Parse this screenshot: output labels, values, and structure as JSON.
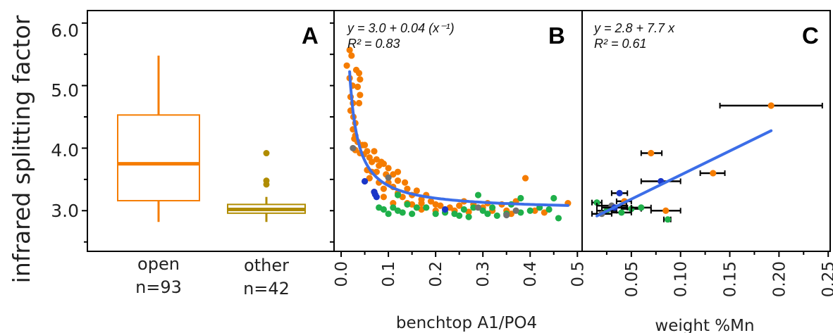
{
  "figure": {
    "y_axis_label": "infrared splitting factor",
    "y_ticks": [
      "3.0",
      "4.0",
      "5.0",
      "6.0"
    ],
    "colors": {
      "open": "#f57c00",
      "other": "#b08c00",
      "orange_points": "#f57c00",
      "green_points": "#1fb04a",
      "blue_points": "#1a36c8",
      "gray_points": "#707070",
      "fit_line": "#3c6ee8",
      "error_bar": "#000000"
    }
  },
  "chart_data": [
    {
      "panel": "A",
      "type": "box",
      "ylim": [
        2.35,
        6.2
      ],
      "categories": [
        "open",
        "other"
      ],
      "counts": [
        "n=93",
        "n=42"
      ],
      "boxes": [
        {
          "name": "open",
          "min": 2.82,
          "q1": 3.16,
          "median": 3.75,
          "q3": 4.53,
          "max": 5.48,
          "outliers": []
        },
        {
          "name": "other",
          "min": 2.82,
          "q1": 2.96,
          "median": 3.02,
          "q3": 3.1,
          "max": 3.22,
          "outliers": [
            3.92,
            3.48,
            3.42
          ]
        }
      ]
    },
    {
      "panel": "B",
      "type": "scatter",
      "xlabel": "benchtop A1/PO4",
      "x_ticks": [
        "0.0",
        "0.1",
        "0.2",
        "0.3",
        "0.4",
        "0.5"
      ],
      "xlim": [
        -0.015,
        0.51
      ],
      "ylim": [
        2.35,
        6.2
      ],
      "equation": "y = 3.0 + 0.04 (x⁻¹)",
      "r2": "R² = 0.83",
      "fit": {
        "intercept": 3.0,
        "slope": 0.04,
        "form": "reciprocal",
        "x_range": [
          0.018,
          0.48
        ]
      },
      "series": [
        {
          "color_key": "orange_points",
          "points": [
            [
              0.012,
              5.32
            ],
            [
              0.018,
              5.57
            ],
            [
              0.022,
              5.48
            ],
            [
              0.018,
              5.12
            ],
            [
              0.024,
              5.0
            ],
            [
              0.02,
              4.82
            ],
            [
              0.025,
              4.72
            ],
            [
              0.02,
              4.6
            ],
            [
              0.026,
              4.5
            ],
            [
              0.03,
              4.4
            ],
            [
              0.025,
              4.3
            ],
            [
              0.03,
              4.2
            ],
            [
              0.032,
              5.25
            ],
            [
              0.038,
              5.2
            ],
            [
              0.04,
              5.1
            ],
            [
              0.035,
              4.98
            ],
            [
              0.04,
              4.85
            ],
            [
              0.028,
              4.15
            ],
            [
              0.035,
              4.1
            ],
            [
              0.03,
              3.97
            ],
            [
              0.04,
              3.92
            ],
            [
              0.045,
              4.05
            ],
            [
              0.038,
              4.72
            ],
            [
              0.05,
              4.05
            ],
            [
              0.048,
              3.9
            ],
            [
              0.055,
              3.95
            ],
            [
              0.06,
              3.85
            ],
            [
              0.065,
              3.78
            ],
            [
              0.07,
              3.95
            ],
            [
              0.075,
              3.82
            ],
            [
              0.08,
              3.72
            ],
            [
              0.085,
              3.78
            ],
            [
              0.09,
              3.75
            ],
            [
              0.095,
              3.58
            ],
            [
              0.1,
              3.68
            ],
            [
              0.11,
              3.58
            ],
            [
              0.12,
              3.62
            ],
            [
              0.055,
              3.65
            ],
            [
              0.065,
              3.62
            ],
            [
              0.06,
              3.52
            ],
            [
              0.075,
              3.62
            ],
            [
              0.08,
              3.45
            ],
            [
              0.09,
              3.35
            ],
            [
              0.1,
              3.45
            ],
            [
              0.11,
              3.38
            ],
            [
              0.12,
              3.28
            ],
            [
              0.13,
              3.22
            ],
            [
              0.14,
              3.35
            ],
            [
              0.15,
              3.25
            ],
            [
              0.16,
              3.32
            ],
            [
              0.17,
              3.18
            ],
            [
              0.18,
              3.25
            ],
            [
              0.19,
              3.15
            ],
            [
              0.15,
              3.1
            ],
            [
              0.16,
              3.05
            ],
            [
              0.17,
              3.02
            ],
            [
              0.12,
              3.48
            ],
            [
              0.135,
              3.45
            ],
            [
              0.14,
              3.12
            ],
            [
              0.18,
              3.05
            ],
            [
              0.2,
              3.1
            ],
            [
              0.22,
              3.02
            ],
            [
              0.23,
              3.05
            ],
            [
              0.24,
              3.0
            ],
            [
              0.26,
              3.15
            ],
            [
              0.28,
              3.1
            ],
            [
              0.3,
              3.05
            ],
            [
              0.32,
              3.0
            ],
            [
              0.34,
              3.1
            ],
            [
              0.35,
              3.0
            ],
            [
              0.37,
              3.15
            ],
            [
              0.39,
              3.52
            ],
            [
              0.41,
              3.0
            ],
            [
              0.43,
              2.97
            ],
            [
              0.48,
              3.12
            ],
            [
              0.36,
              2.95
            ],
            [
              0.25,
              3.08
            ],
            [
              0.27,
              2.98
            ],
            [
              0.31,
              3.12
            ],
            [
              0.21,
              3.08
            ],
            [
              0.11,
              3.12
            ],
            [
              0.09,
              3.22
            ],
            [
              0.07,
              3.3
            ],
            [
              0.17,
              3.12
            ],
            [
              0.2,
              3.0
            ]
          ]
        },
        {
          "color_key": "green_points",
          "points": [
            [
              0.1,
              2.95
            ],
            [
              0.12,
              3.0
            ],
            [
              0.13,
              2.97
            ],
            [
              0.11,
              3.05
            ],
            [
              0.14,
              3.1
            ],
            [
              0.15,
              2.95
            ],
            [
              0.16,
              3.05
            ],
            [
              0.18,
              3.05
            ],
            [
              0.2,
              2.95
            ],
            [
              0.22,
              2.97
            ],
            [
              0.24,
              2.95
            ],
            [
              0.26,
              3.02
            ],
            [
              0.28,
              3.05
            ],
            [
              0.29,
              3.25
            ],
            [
              0.3,
              3.0
            ],
            [
              0.31,
              2.95
            ],
            [
              0.32,
              3.05
            ],
            [
              0.33,
              2.92
            ],
            [
              0.35,
              2.95
            ],
            [
              0.36,
              3.1
            ],
            [
              0.38,
              3.2
            ],
            [
              0.4,
              3.0
            ],
            [
              0.42,
              3.05
            ],
            [
              0.44,
              3.02
            ],
            [
              0.45,
              3.2
            ],
            [
              0.46,
              2.88
            ],
            [
              0.25,
              2.92
            ],
            [
              0.27,
              2.9
            ],
            [
              0.38,
              2.97
            ],
            [
              0.12,
              3.25
            ],
            [
              0.09,
              3.02
            ],
            [
              0.08,
              3.05
            ]
          ]
        },
        {
          "color_key": "blue_points",
          "points": [
            [
              0.05,
              3.47
            ],
            [
              0.07,
              3.3
            ],
            [
              0.072,
              3.26
            ],
            [
              0.075,
              3.22
            ],
            [
              0.22,
              3.02
            ]
          ]
        },
        {
          "color_key": "gray_points",
          "points": [
            [
              0.025,
              4.0
            ],
            [
              0.1,
              3.53
            ],
            [
              0.29,
              3.05
            ],
            [
              0.37,
              3.0
            ],
            [
              0.35,
              2.93
            ]
          ]
        }
      ]
    },
    {
      "panel": "C",
      "type": "scatter",
      "xlabel": "weight %Mn",
      "x_ticks": [
        "0.05",
        "0.10",
        "0.15",
        "0.20",
        "0.25"
      ],
      "xlim": [
        0.0,
        0.252
      ],
      "ylim": [
        2.35,
        6.2
      ],
      "equation": "y = 2.8 + 7.7 x",
      "r2": "R² = 0.61",
      "fit": {
        "intercept": 2.8,
        "slope": 7.7,
        "form": "linear",
        "x_range": [
          0.015,
          0.192
        ]
      },
      "points": [
        {
          "x": 0.192,
          "y": 4.68,
          "xerr": [
            0.14,
            0.244
          ],
          "color_key": "orange_points"
        },
        {
          "x": 0.07,
          "y": 3.92,
          "xerr": [
            0.06,
            0.081
          ],
          "color_key": "orange_points"
        },
        {
          "x": 0.133,
          "y": 3.6,
          "xerr": [
            0.12,
            0.145
          ],
          "color_key": "orange_points"
        },
        {
          "x": 0.08,
          "y": 3.47,
          "xerr": [
            0.06,
            0.1
          ],
          "color_key": "blue_points"
        },
        {
          "x": 0.038,
          "y": 3.28,
          "xerr": [
            0.03,
            0.046
          ],
          "color_key": "blue_points"
        },
        {
          "x": 0.043,
          "y": 3.15,
          "xerr": [
            0.035,
            0.05
          ],
          "color_key": "orange_points"
        },
        {
          "x": 0.015,
          "y": 3.13,
          "xerr": [
            0.01,
            0.02
          ],
          "color_key": "green_points"
        },
        {
          "x": 0.085,
          "y": 3.0,
          "xerr": [
            0.07,
            0.1
          ],
          "color_key": "orange_points"
        },
        {
          "x": 0.03,
          "y": 3.08,
          "xerr": [
            0.015,
            0.045
          ],
          "color_key": "gray_points"
        },
        {
          "x": 0.05,
          "y": 3.03,
          "xerr": [
            0.04,
            0.06
          ],
          "color_key": "green_points"
        },
        {
          "x": 0.025,
          "y": 3.0,
          "xerr": [
            0.015,
            0.035
          ],
          "color_key": "green_points"
        },
        {
          "x": 0.04,
          "y": 2.97,
          "xerr": [
            0.03,
            0.05
          ],
          "color_key": "green_points"
        },
        {
          "x": 0.02,
          "y": 2.95,
          "xerr": [
            0.01,
            0.03
          ],
          "color_key": "gray_points"
        },
        {
          "x": 0.06,
          "y": 3.05,
          "xerr": [
            0.05,
            0.07
          ],
          "color_key": "green_points"
        },
        {
          "x": 0.087,
          "y": 2.86,
          "xerr": [
            0.083,
            0.09
          ],
          "color_key": "green_points"
        },
        {
          "x": 0.033,
          "y": 3.05,
          "xerr": [
            0.02,
            0.046
          ],
          "color_key": "blue_points"
        }
      ]
    }
  ]
}
